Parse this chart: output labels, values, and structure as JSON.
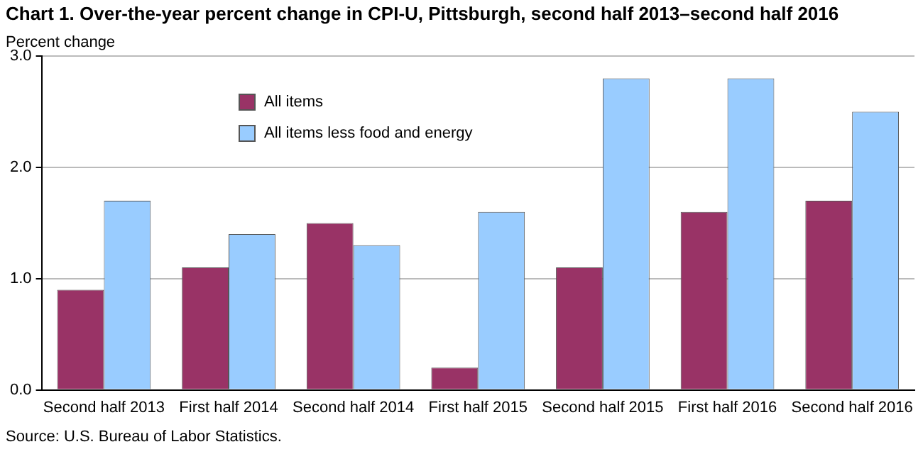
{
  "chart_data": {
    "type": "bar",
    "title": "Chart 1. Over-the-year percent change in CPI-U, Pittsburgh, second half 2013–second half 2016",
    "ylabel": "Percent change",
    "categories": [
      "Second half 2013",
      "First half 2014",
      "Second half 2014",
      "First half 2015",
      "Second half 2015",
      "First half 2016",
      "Second half 2016"
    ],
    "series": [
      {
        "name": "All items",
        "color": "#993366",
        "values": [
          0.9,
          1.1,
          1.5,
          0.2,
          1.1,
          1.6,
          1.7
        ]
      },
      {
        "name": "All items less food and energy",
        "color": "#99ccff",
        "values": [
          1.7,
          1.4,
          1.3,
          1.6,
          2.8,
          2.8,
          2.5
        ]
      }
    ],
    "ylim": [
      0,
      3
    ],
    "yticks": [
      {
        "value": 0,
        "label": "0.0"
      },
      {
        "value": 1,
        "label": "1.0"
      },
      {
        "value": 2,
        "label": "2.0"
      },
      {
        "value": 3,
        "label": "3.0"
      }
    ],
    "grid": "y",
    "legend": "top left",
    "annotations": [
      "Source: U.S. Bureau of Labor Statistics."
    ]
  }
}
